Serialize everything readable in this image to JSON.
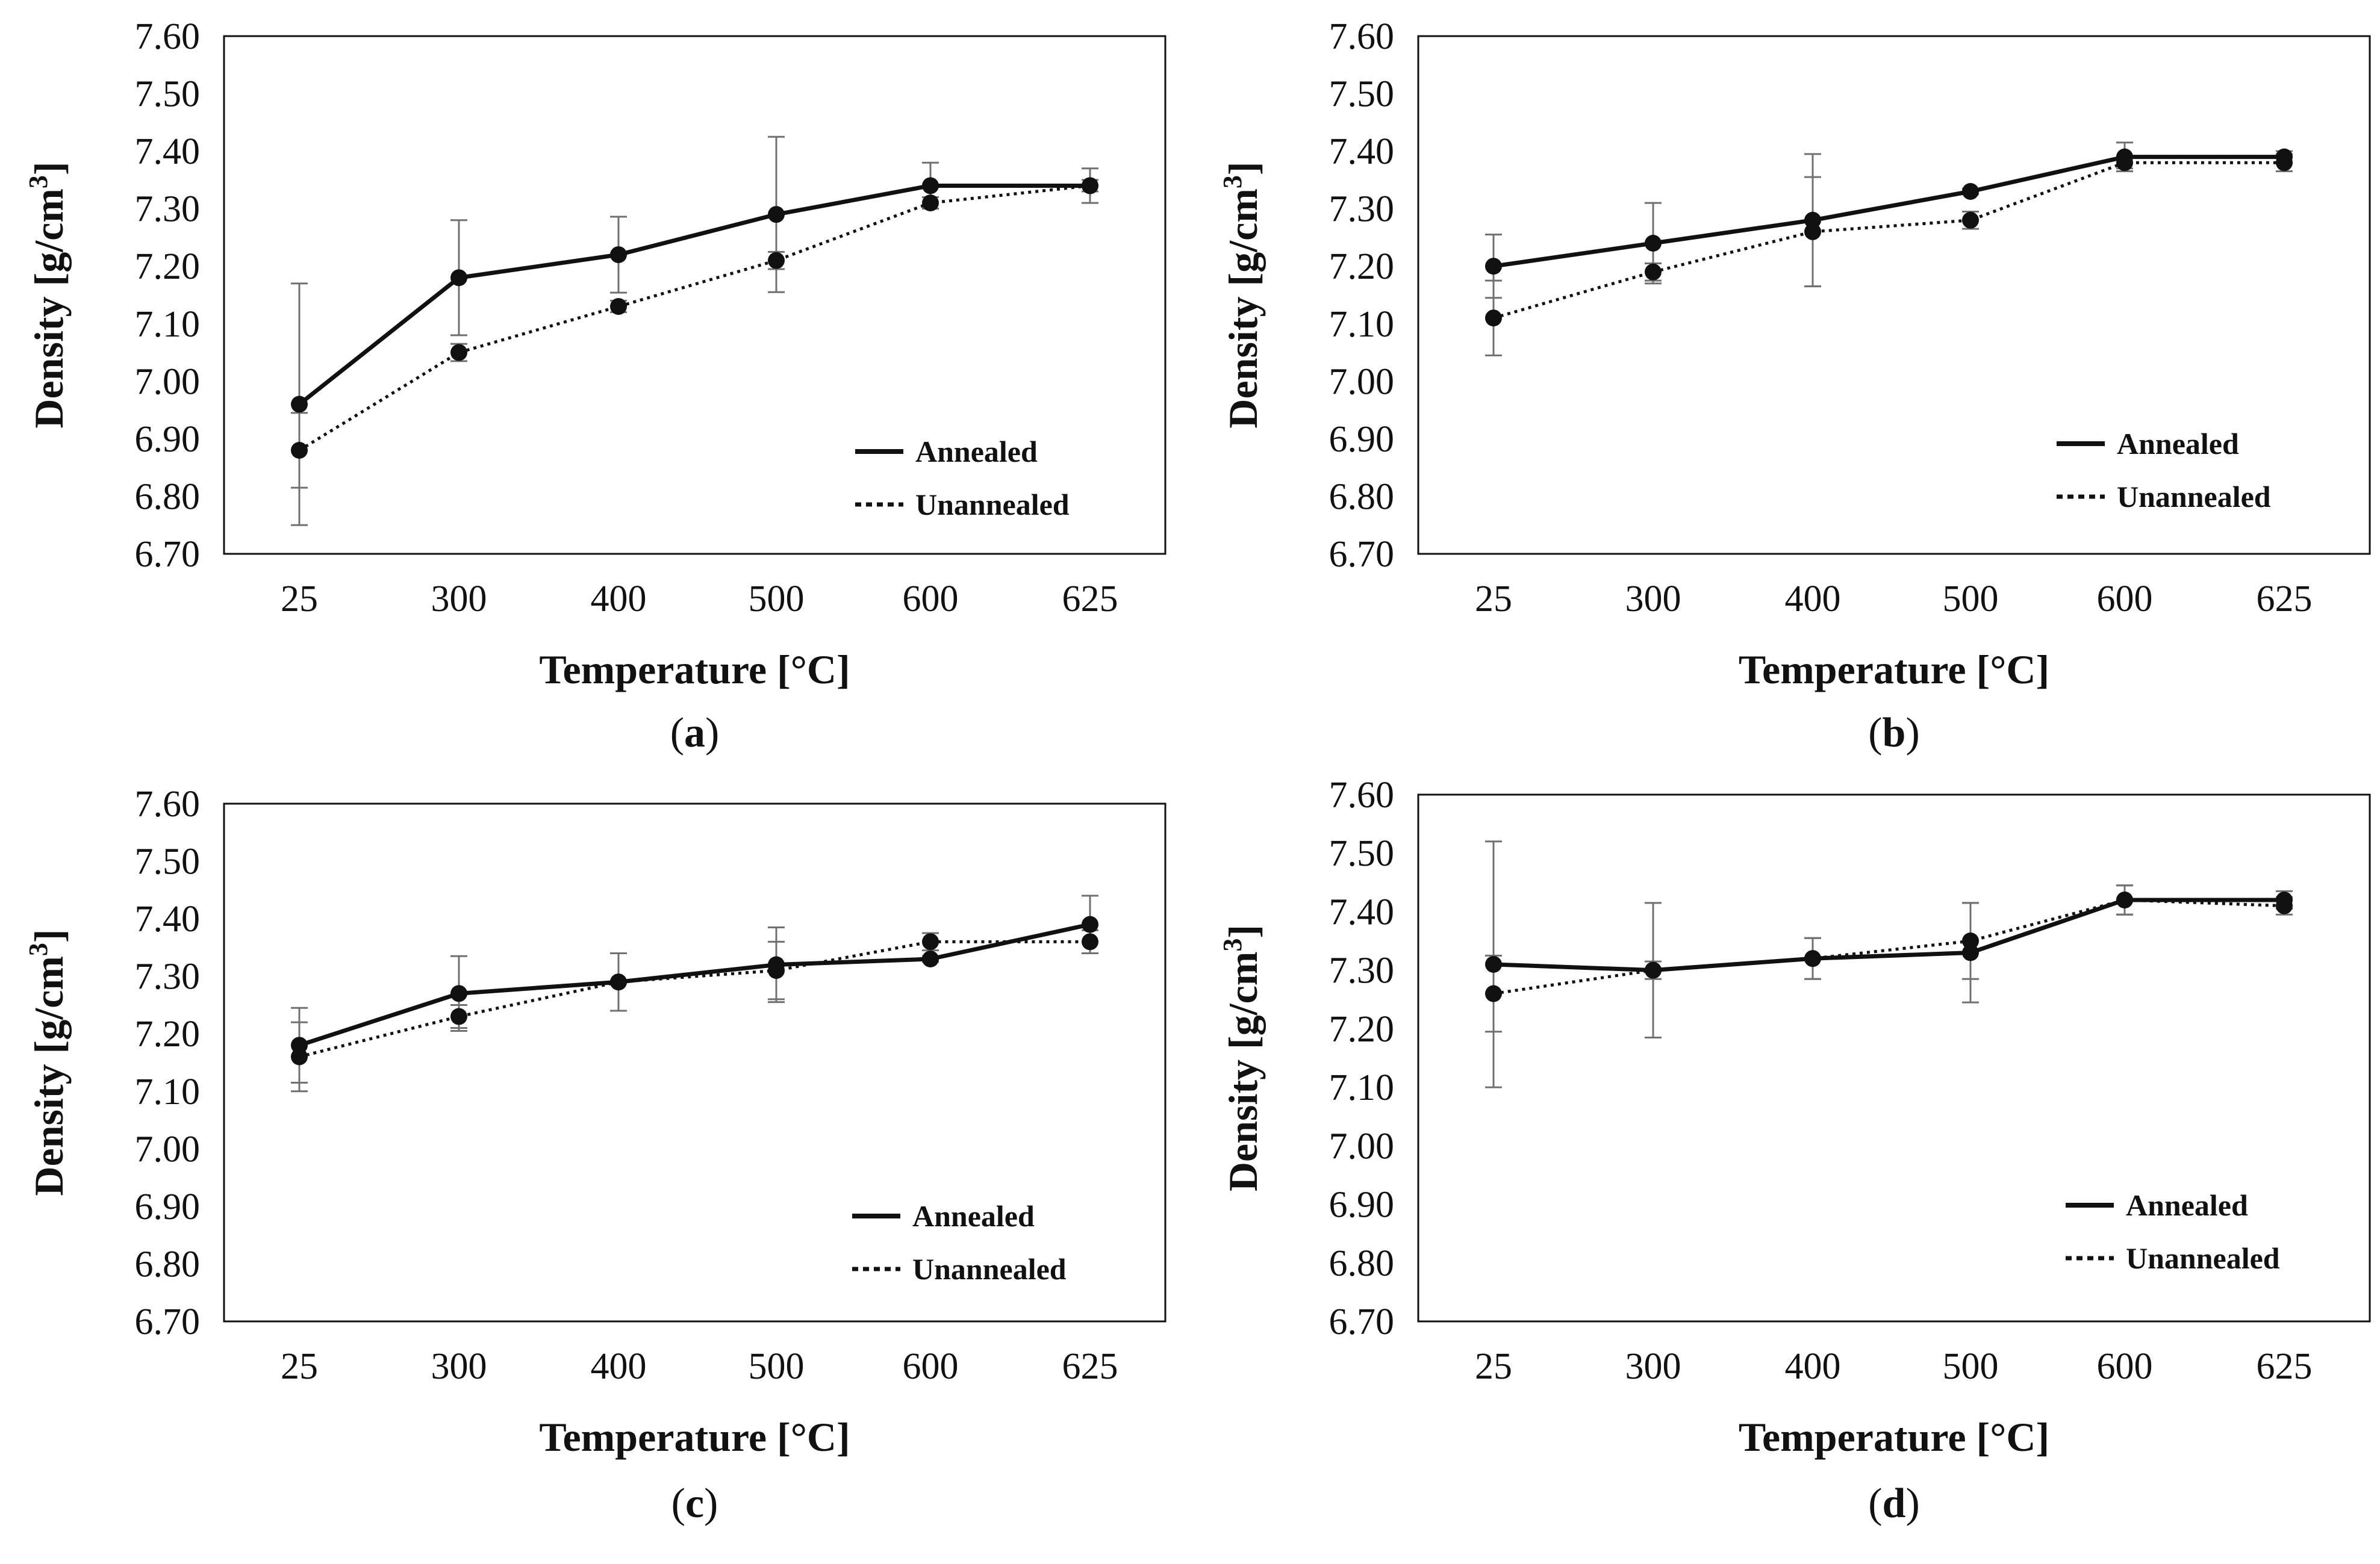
{
  "chart_data": [
    {
      "panel": "a",
      "type": "line",
      "categories": [
        "25",
        "300",
        "400",
        "500",
        "600",
        "625"
      ],
      "xlabel": "Temperature [°C]",
      "ylabel_main": "Density [g/cm",
      "ylabel_sup": "3",
      "ylabel_close": "]",
      "ylim": [
        6.7,
        7.6
      ],
      "yticks": [
        "7.60",
        "7.50",
        "7.40",
        "7.30",
        "7.20",
        "7.10",
        "7.00",
        "6.90",
        "6.80",
        "6.70"
      ],
      "series": [
        {
          "name": "Annealed",
          "style": "solid",
          "values": [
            6.96,
            7.18,
            7.22,
            7.29,
            7.34,
            7.34
          ],
          "errors": [
            0.21,
            0.1,
            0.066,
            0.135,
            0.04,
            0.03
          ]
        },
        {
          "name": "Unannealed",
          "style": "dotted",
          "values": [
            6.88,
            7.05,
            7.13,
            7.21,
            7.31,
            7.34
          ],
          "errors": [
            0.065,
            0.015,
            0.01,
            0.015,
            0.01,
            0.01
          ]
        }
      ]
    },
    {
      "panel": "b",
      "type": "line",
      "categories": [
        "25",
        "300",
        "400",
        "500",
        "600",
        "625"
      ],
      "xlabel": "Temperature [°C]",
      "ylabel_main": "Density [g/cm",
      "ylabel_sup": "3",
      "ylabel_close": "]",
      "ylim": [
        6.7,
        7.6
      ],
      "yticks": [
        "7.60",
        "7.50",
        "7.40",
        "7.30",
        "7.20",
        "7.10",
        "7.00",
        "6.90",
        "6.80",
        "6.70"
      ],
      "series": [
        {
          "name": "Annealed",
          "style": "solid",
          "values": [
            7.2,
            7.24,
            7.28,
            7.33,
            7.39,
            7.39
          ],
          "errors": [
            0.055,
            0.07,
            0.115,
            0.005,
            0.025,
            0.01
          ]
        },
        {
          "name": "Unannealed",
          "style": "dotted",
          "values": [
            7.11,
            7.19,
            7.26,
            7.28,
            7.38,
            7.38
          ],
          "errors": [
            0.065,
            0.015,
            0.095,
            0.015,
            0.01,
            0.015
          ]
        }
      ]
    },
    {
      "panel": "c",
      "type": "line",
      "categories": [
        "25",
        "300",
        "400",
        "500",
        "600",
        "625"
      ],
      "xlabel": "Temperature [°C]",
      "ylabel_main": "Density [g/cm",
      "ylabel_sup": "3",
      "ylabel_close": "]",
      "ylim": [
        6.7,
        7.6
      ],
      "yticks": [
        "7.60",
        "7.50",
        "7.40",
        "7.30",
        "7.20",
        "7.10",
        "7.00",
        "6.90",
        "6.80",
        "6.70"
      ],
      "series": [
        {
          "name": "Annealed",
          "style": "solid",
          "values": [
            7.18,
            7.27,
            7.29,
            7.32,
            7.33,
            7.39
          ],
          "errors": [
            0.065,
            0.065,
            0.05,
            0.065,
            0.005,
            0.05
          ]
        },
        {
          "name": "Unannealed",
          "style": "dotted",
          "values": [
            7.16,
            7.23,
            7.29,
            7.31,
            7.36,
            7.36
          ],
          "errors": [
            0.06,
            0.02,
            0.05,
            0.05,
            0.015,
            0.02
          ]
        }
      ]
    },
    {
      "panel": "d",
      "type": "line",
      "categories": [
        "25",
        "300",
        "400",
        "500",
        "600",
        "625"
      ],
      "xlabel": "Temperature [°C]",
      "ylabel_main": "Density [g/cm",
      "ylabel_sup": "3",
      "ylabel_close": "]",
      "ylim": [
        6.7,
        7.6
      ],
      "yticks": [
        "7.60",
        "7.50",
        "7.40",
        "7.30",
        "7.20",
        "7.10",
        "7.00",
        "6.90",
        "6.80",
        "6.70"
      ],
      "series": [
        {
          "name": "Annealed",
          "style": "solid",
          "values": [
            7.31,
            7.3,
            7.32,
            7.33,
            7.42,
            7.42
          ],
          "errors": [
            0.21,
            0.115,
            0.035,
            0.085,
            0.025,
            0.015
          ]
        },
        {
          "name": "Unannealed",
          "style": "dotted",
          "values": [
            7.26,
            7.3,
            7.32,
            7.35,
            7.42,
            7.41
          ],
          "errors": [
            0.065,
            0.015,
            0.035,
            0.065,
            0.025,
            0.015
          ]
        }
      ]
    }
  ],
  "panel_labels": [
    "a",
    "b",
    "c",
    "d"
  ],
  "colors": {
    "line": "#111111",
    "errorbar": "#707070",
    "background": "#ffffff",
    "frame": "#111111"
  }
}
